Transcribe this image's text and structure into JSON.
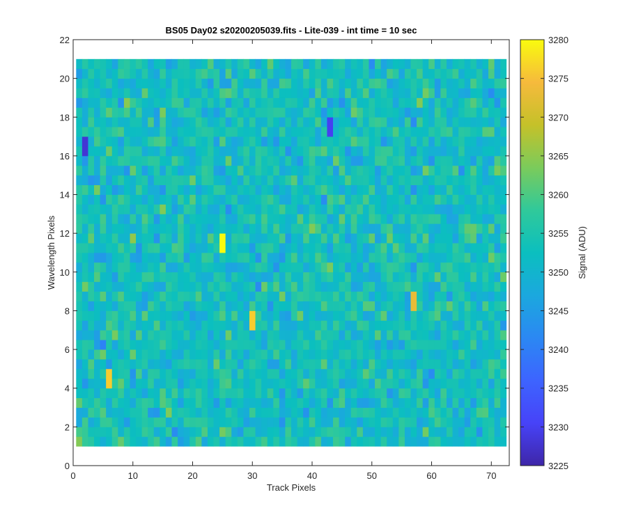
{
  "chart_data": {
    "type": "heatmap",
    "title": "BS05 Day02  s20200205039.fits - Lite-039 - int time = 10 sec",
    "xlabel": "Track Pixels",
    "ylabel": "Wavelength Pixels",
    "colorbar_label": "Signal (ADU)",
    "colormap": "parula",
    "xlim": [
      0,
      73
    ],
    "ylim": [
      0,
      22
    ],
    "clim": [
      3225,
      3280
    ],
    "x_range": [
      1,
      72
    ],
    "y_range": [
      1,
      21
    ],
    "x_ticks": [
      0,
      10,
      20,
      30,
      40,
      50,
      60,
      70
    ],
    "y_ticks": [
      0,
      2,
      4,
      6,
      8,
      10,
      12,
      14,
      16,
      18,
      20,
      22
    ],
    "colorbar_ticks": [
      3225,
      3230,
      3235,
      3240,
      3245,
      3250,
      3255,
      3260,
      3265,
      3270,
      3275,
      3280
    ],
    "grid": false,
    "noted_cells": [
      {
        "x": 25,
        "y": 11.5,
        "value": 3280
      },
      {
        "x": 2,
        "y": 16.5,
        "value": 3228
      },
      {
        "x": 43,
        "y": 17.5,
        "value": 3230
      },
      {
        "x": 57,
        "y": 8.5,
        "value": 3273
      },
      {
        "x": 6,
        "y": 4.5,
        "value": 3276
      },
      {
        "x": 30,
        "y": 7.5,
        "value": 3276
      }
    ],
    "value_summary": "Noise-like field, most cells ~3240-3265 ADU"
  }
}
